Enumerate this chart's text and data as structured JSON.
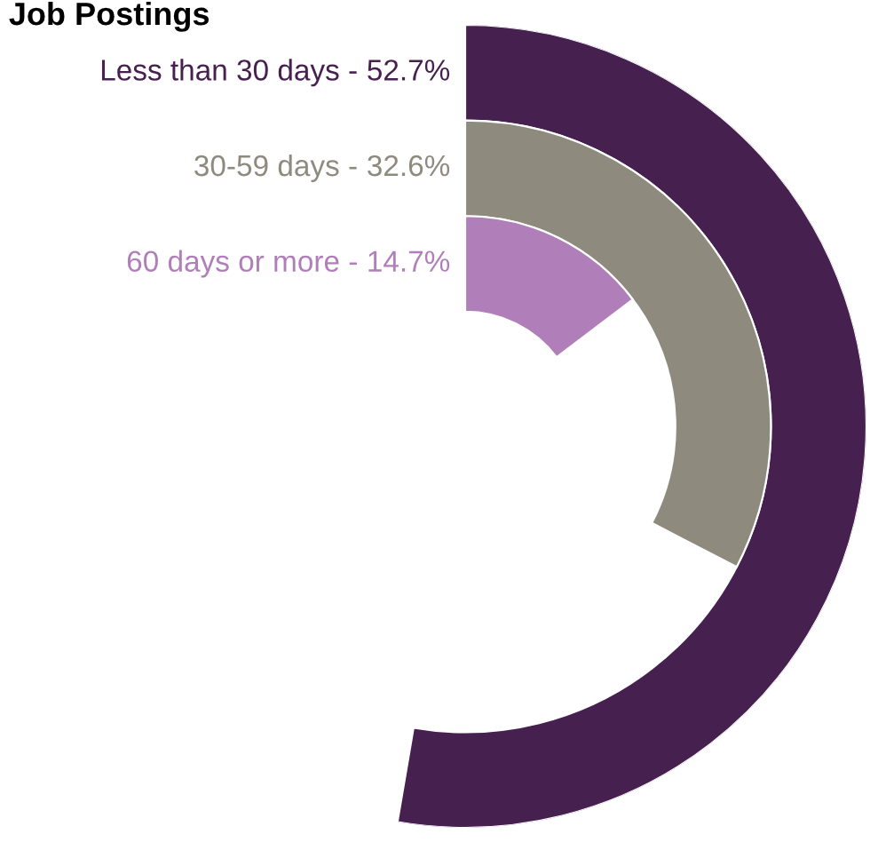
{
  "chart_data": {
    "type": "other",
    "title": "Job Postings",
    "categories": [
      "Less than 30 days -",
      "30-59 days -",
      "60 days or more -"
    ],
    "values": [
      52.7,
      32.6,
      14.7
    ],
    "value_labels": [
      "52.7%",
      "32.6%",
      "14.7%"
    ],
    "colors": [
      "#46204f",
      "#8e8a7e",
      "#b07fba"
    ]
  }
}
